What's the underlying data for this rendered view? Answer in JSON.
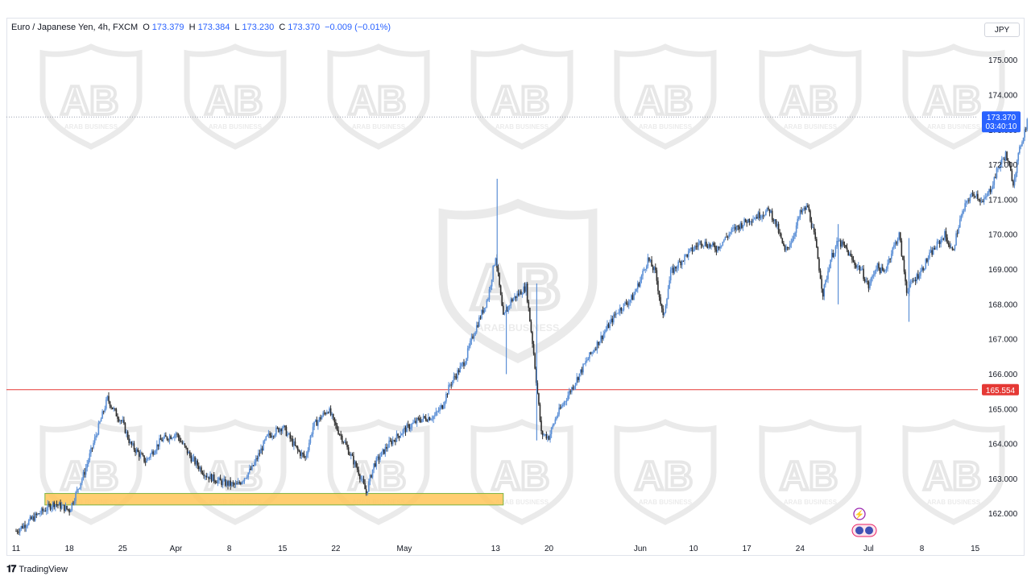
{
  "header": {
    "symbol": "Euro / Japanese Yen, 4h, FXCM",
    "open_label": "O",
    "open": "173.379",
    "high_label": "H",
    "high": "173.384",
    "low_label": "L",
    "low": "173.230",
    "close_label": "C",
    "close": "173.370",
    "change": "−0.009 (−0.01%)"
  },
  "currency": "JPY",
  "branding": {
    "logo": "TradingView",
    "watermark": "ARAB BUSINESS"
  },
  "colors": {
    "up": "#5b8fd6",
    "down": "#2e2e2e",
    "support": "#ffc658",
    "resistance": "#e53935",
    "accent": "#2962ff"
  },
  "chart_data": {
    "type": "candlestick",
    "timeframe": "4h",
    "ylim": [
      161.3,
      175.8
    ],
    "y_ticks": [
      "162.000",
      "163.000",
      "164.000",
      "165.000",
      "166.000",
      "167.000",
      "168.000",
      "169.000",
      "170.000",
      "171.000",
      "172.000",
      "173.000",
      "174.000",
      "175.000"
    ],
    "x_ticks": [
      "11",
      "18",
      "25",
      "Apr",
      "8",
      "15",
      "22",
      "May",
      "13",
      "20",
      "Jun",
      "10",
      "17",
      "24",
      "Jul",
      "8",
      "15"
    ],
    "x_range_days": [
      0,
      128
    ],
    "x_tick_days": [
      0,
      7,
      14,
      21,
      28,
      35,
      42,
      51,
      63,
      70,
      82,
      89,
      96,
      103,
      112,
      119,
      126
    ],
    "current_price": {
      "value": 173.37,
      "label": "173.370",
      "countdown": "03:40:10"
    },
    "resistance_line": {
      "value": 165.554,
      "label": "165.554"
    },
    "support_zone": {
      "from": 162.25,
      "to": 162.58,
      "start_day": 4,
      "end_day": 64
    },
    "price_path": [
      [
        0,
        161.5
      ],
      [
        3,
        162.0
      ],
      [
        5,
        162.3
      ],
      [
        7,
        162.1
      ],
      [
        9,
        163.2
      ],
      [
        11,
        164.6
      ],
      [
        12,
        165.3
      ],
      [
        13,
        164.9
      ],
      [
        14,
        164.6
      ],
      [
        15,
        164.0
      ],
      [
        17,
        163.5
      ],
      [
        19,
        164.1
      ],
      [
        21,
        164.3
      ],
      [
        23,
        163.6
      ],
      [
        25,
        163.1
      ],
      [
        27,
        162.9
      ],
      [
        29,
        162.8
      ],
      [
        31,
        163.3
      ],
      [
        33,
        164.2
      ],
      [
        35,
        164.5
      ],
      [
        37,
        163.8
      ],
      [
        38,
        163.6
      ],
      [
        39,
        164.5
      ],
      [
        41,
        165.0
      ],
      [
        42,
        164.5
      ],
      [
        43,
        164.1
      ],
      [
        45,
        163.2
      ],
      [
        46,
        162.6
      ],
      [
        47,
        163.4
      ],
      [
        49,
        164.0
      ],
      [
        51,
        164.4
      ],
      [
        53,
        164.7
      ],
      [
        55,
        164.8
      ],
      [
        56,
        165.1
      ],
      [
        57,
        165.7
      ],
      [
        59,
        166.4
      ],
      [
        60,
        167.1
      ],
      [
        62,
        168.2
      ],
      [
        63,
        169.4
      ],
      [
        64,
        167.6
      ],
      [
        65,
        168.1
      ],
      [
        67,
        168.5
      ],
      [
        68,
        166.6
      ],
      [
        69,
        164.3
      ],
      [
        70,
        164.2
      ],
      [
        71,
        164.8
      ],
      [
        73,
        165.6
      ],
      [
        75,
        166.4
      ],
      [
        77,
        167.1
      ],
      [
        79,
        167.8
      ],
      [
        81,
        168.2
      ],
      [
        82,
        168.7
      ],
      [
        83,
        169.3
      ],
      [
        84,
        168.9
      ],
      [
        85,
        167.6
      ],
      [
        86,
        168.9
      ],
      [
        88,
        169.4
      ],
      [
        90,
        169.8
      ],
      [
        92,
        169.6
      ],
      [
        94,
        170.1
      ],
      [
        96,
        170.4
      ],
      [
        98,
        170.6
      ],
      [
        99,
        170.7
      ],
      [
        100,
        170.2
      ],
      [
        101,
        169.5
      ],
      [
        102,
        169.9
      ],
      [
        103,
        170.6
      ],
      [
        104,
        170.8
      ],
      [
        105,
        169.8
      ],
      [
        106,
        168.3
      ],
      [
        107,
        169.3
      ],
      [
        108,
        169.8
      ],
      [
        109,
        169.6
      ],
      [
        110,
        169.2
      ],
      [
        111,
        169.0
      ],
      [
        112,
        168.5
      ],
      [
        113,
        169.1
      ],
      [
        114,
        168.9
      ],
      [
        115,
        169.5
      ],
      [
        116,
        170.0
      ],
      [
        117,
        168.4
      ],
      [
        118,
        168.7
      ],
      [
        119,
        169.0
      ],
      [
        120,
        169.4
      ],
      [
        121,
        169.7
      ],
      [
        122,
        170.0
      ],
      [
        123,
        169.5
      ],
      [
        124,
        170.4
      ],
      [
        125,
        171.0
      ],
      [
        126,
        171.2
      ],
      [
        127,
        170.9
      ],
      [
        128,
        171.3
      ],
      [
        129,
        171.9
      ],
      [
        130,
        172.3
      ],
      [
        131,
        171.5
      ],
      [
        132,
        172.6
      ],
      [
        133,
        173.37
      ]
    ],
    "spikes": [
      {
        "day": 63.2,
        "high": 171.6,
        "low": 169.1
      },
      {
        "day": 64.4,
        "high": 168.0,
        "low": 166.0
      },
      {
        "day": 68.4,
        "high": 168.6,
        "low": 164.1
      },
      {
        "day": 117.3,
        "high": 169.9,
        "low": 167.5
      },
      {
        "day": 108.0,
        "high": 170.3,
        "low": 168.0
      }
    ]
  }
}
